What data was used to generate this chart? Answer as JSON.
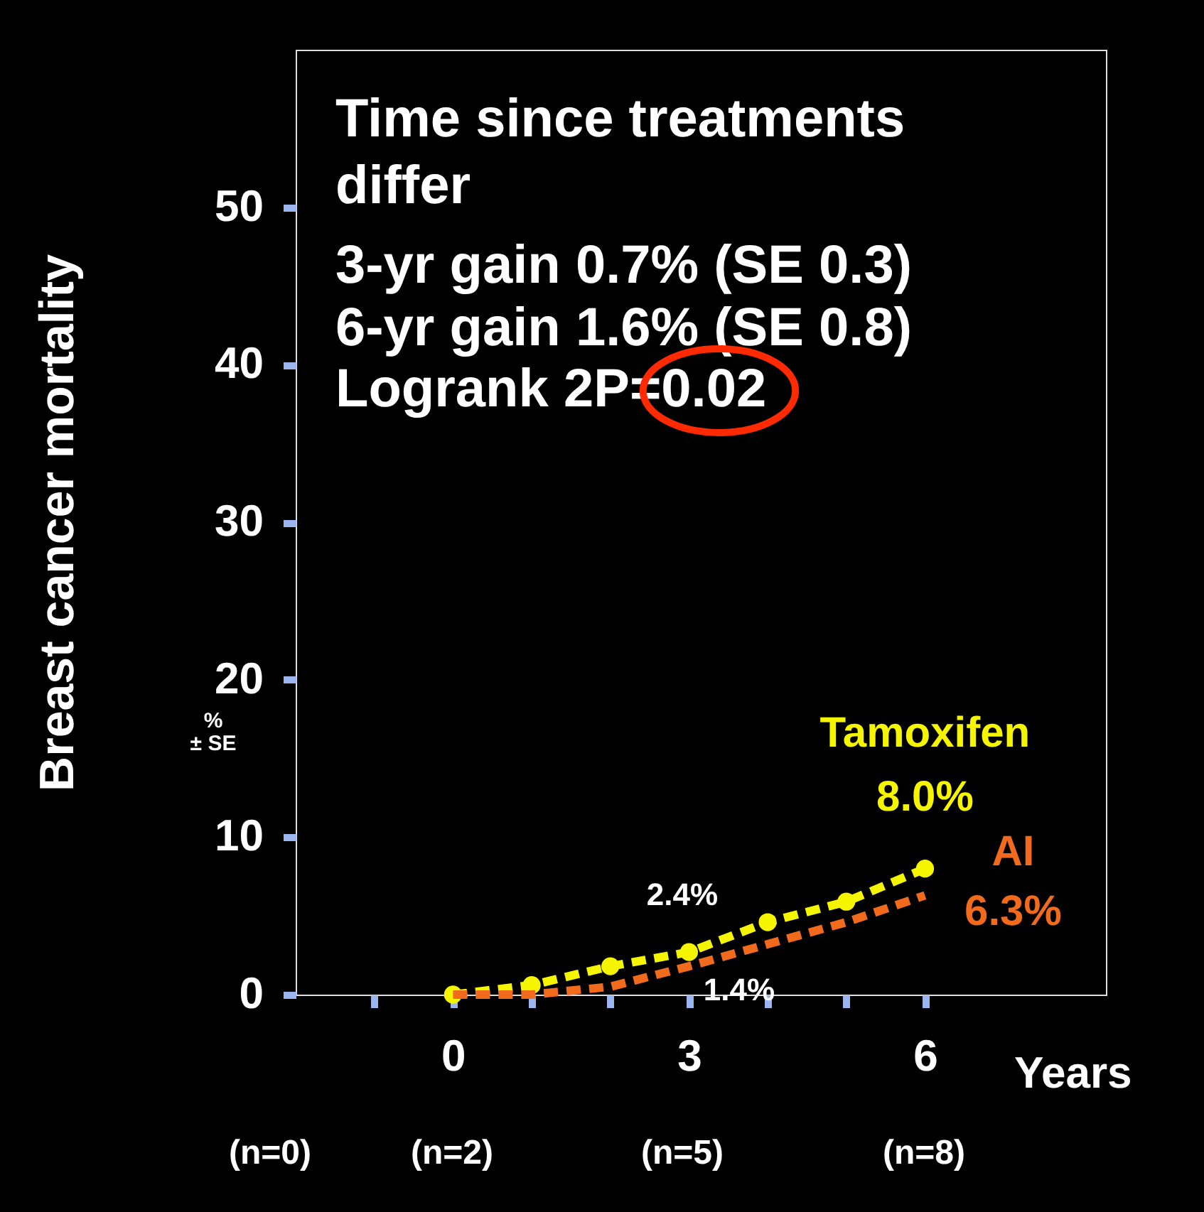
{
  "chart_data": {
    "type": "line",
    "ylabel": "Breast cancer mortality",
    "xlabel": "Years",
    "x": [
      0,
      1,
      2,
      3,
      4,
      5,
      6
    ],
    "series": [
      {
        "name": "Tamoxifen",
        "color": "#f5f500",
        "values": [
          0,
          0.6,
          1.8,
          2.7,
          4.6,
          5.9,
          8.0
        ],
        "marker": "circle",
        "value_labels": [
          null,
          null,
          null,
          null,
          null,
          null,
          "8.0%"
        ]
      },
      {
        "name": "AI",
        "color": "#f26b1d",
        "values": [
          0,
          0,
          0.5,
          1.8,
          3.2,
          4.6,
          6.3
        ],
        "marker": "none",
        "value_labels": [
          null,
          null,
          null,
          null,
          null,
          null,
          "6.3%"
        ]
      }
    ],
    "line_style": "dashed",
    "xlim": [
      -2,
      8.3
    ],
    "xticks": [
      {
        "value": -1,
        "label": null
      },
      0,
      {
        "value": 1,
        "label": null
      },
      {
        "value": 2,
        "label": null
      },
      3,
      {
        "value": 4,
        "label": null
      },
      {
        "value": 5,
        "label": null
      },
      6
    ],
    "ylim": [
      0,
      60
    ],
    "yticks": [
      0,
      10,
      20,
      30,
      40,
      50
    ],
    "legend": false,
    "annotations": [
      "Time since treatments",
      " differ",
      "3-yr gain 0.7% (SE 0.3)",
      "6-yr gain 1.6% (SE 0.8)",
      "Logrank 2P=0.02",
      "%",
      "± SE",
      "(n=0)",
      "(n=2)",
      "(n=5)",
      "(n=8)",
      "2.4%",
      "1.4%"
    ]
  }
}
